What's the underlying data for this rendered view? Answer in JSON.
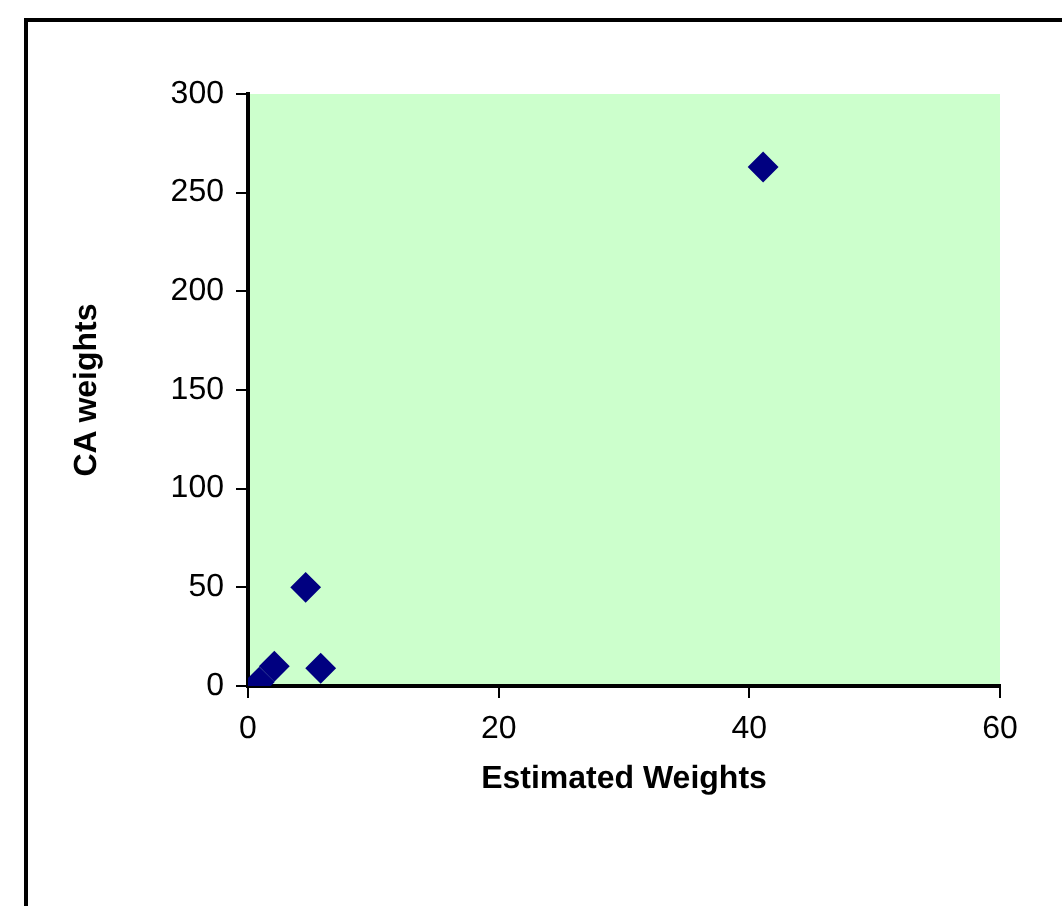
{
  "chart_data": {
    "type": "scatter",
    "xlabel": "Estimated Weights",
    "ylabel": "CA weights",
    "series": [
      {
        "color": "#000080",
        "x": [
          0.9,
          2.1,
          4.6,
          5.8,
          41.1
        ],
        "values": [
          2,
          10,
          50,
          9,
          263
        ]
      }
    ],
    "xlim": [
      0,
      60
    ],
    "xticks": [
      0,
      20,
      40,
      60
    ],
    "ylim": [
      0,
      300
    ],
    "yticks": [
      0,
      50,
      100,
      150,
      200,
      250,
      300
    ],
    "grid": false,
    "legend": false,
    "marker": "diamond"
  }
}
